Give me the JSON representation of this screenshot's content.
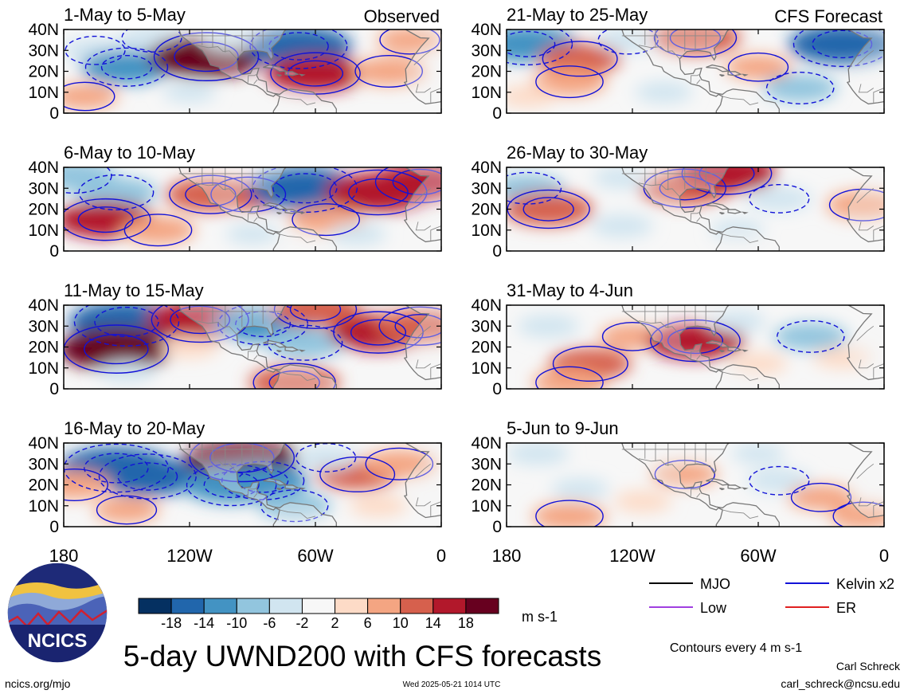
{
  "chart_data": {
    "type": "heatmap",
    "title": "5-day UWND200 with CFS forecasts",
    "units": "m s-1",
    "contour_note": "Contours every 4 m s-1",
    "x_ticks": [
      "180",
      "120W",
      "60W",
      "0"
    ],
    "y_ticks": [
      "40N",
      "30N",
      "20N",
      "10N",
      "0"
    ],
    "xlim": [
      -180,
      0
    ],
    "ylim": [
      0,
      40
    ],
    "colorbar": {
      "tick_labels": [
        "-18",
        "-14",
        "-10",
        "-6",
        "-2",
        "2",
        "6",
        "10",
        "14",
        "18"
      ],
      "colors": [
        "#053061",
        "#2166ac",
        "#4393c3",
        "#92c5de",
        "#d1e5f0",
        "#f7f7f7",
        "#fddbc7",
        "#f4a582",
        "#d6604d",
        "#b2182b",
        "#67001f"
      ]
    },
    "legend": [
      {
        "label": "MJO",
        "color": "#000000"
      },
      {
        "label": "Kelvin x2",
        "color": "#1212d8"
      },
      {
        "label": "Low",
        "color": "#a040e0"
      },
      {
        "label": "ER",
        "color": "#e02020"
      }
    ],
    "panel_tags": {
      "observed": "Observed",
      "forecast": "CFS Forecast"
    },
    "panels": [
      {
        "label": "1-May to 5-May",
        "tag": "observed",
        "col": 0,
        "row": 0,
        "anomalies": [
          {
            "lon": -165,
            "lat": 30,
            "value": -6
          },
          {
            "lon": -150,
            "lat": 22,
            "value": -12
          },
          {
            "lon": -138,
            "lat": 36,
            "value": -6
          },
          {
            "lon": -112,
            "lat": 27,
            "value": 18
          },
          {
            "lon": -100,
            "lat": 36,
            "value": -4
          },
          {
            "lon": -68,
            "lat": 32,
            "value": -16
          },
          {
            "lon": -60,
            "lat": 19,
            "value": 14
          },
          {
            "lon": -25,
            "lat": 20,
            "value": 8
          },
          {
            "lon": -170,
            "lat": 8,
            "value": 6
          },
          {
            "lon": -120,
            "lat": 10,
            "value": -3
          },
          {
            "lon": -15,
            "lat": 35,
            "value": 6
          }
        ]
      },
      {
        "label": "21-May to 25-May",
        "tag": "forecast",
        "col": 1,
        "row": 0,
        "anomalies": [
          {
            "lon": -170,
            "lat": 33,
            "value": -14
          },
          {
            "lon": -145,
            "lat": 26,
            "value": 10
          },
          {
            "lon": -150,
            "lat": 15,
            "value": 8
          },
          {
            "lon": -122,
            "lat": 35,
            "value": -6
          },
          {
            "lon": -90,
            "lat": 36,
            "value": 12
          },
          {
            "lon": -60,
            "lat": 22,
            "value": 6
          },
          {
            "lon": -40,
            "lat": 12,
            "value": -8
          },
          {
            "lon": -20,
            "lat": 33,
            "value": -16
          },
          {
            "lon": -105,
            "lat": 10,
            "value": -4
          },
          {
            "lon": -170,
            "lat": 8,
            "value": 4
          }
        ]
      },
      {
        "label": "6-May to 10-May",
        "tag": "observed",
        "col": 0,
        "row": 1,
        "anomalies": [
          {
            "lon": -175,
            "lat": 36,
            "value": -10
          },
          {
            "lon": -155,
            "lat": 28,
            "value": -10
          },
          {
            "lon": -160,
            "lat": 15,
            "value": 14
          },
          {
            "lon": -135,
            "lat": 10,
            "value": 8
          },
          {
            "lon": -110,
            "lat": 27,
            "value": 12
          },
          {
            "lon": -92,
            "lat": 27,
            "value": 10
          },
          {
            "lon": -65,
            "lat": 30,
            "value": -18
          },
          {
            "lon": -30,
            "lat": 28,
            "value": 16
          },
          {
            "lon": -10,
            "lat": 33,
            "value": 14
          },
          {
            "lon": -55,
            "lat": 15,
            "value": 8
          },
          {
            "lon": -40,
            "lat": 8,
            "value": -4
          },
          {
            "lon": -90,
            "lat": 8,
            "value": -3
          }
        ]
      },
      {
        "label": "26-May to 30-May",
        "tag": "forecast",
        "col": 1,
        "row": 1,
        "anomalies": [
          {
            "lon": -170,
            "lat": 30,
            "value": -8
          },
          {
            "lon": -160,
            "lat": 20,
            "value": 12
          },
          {
            "lon": -95,
            "lat": 30,
            "value": 12
          },
          {
            "lon": -75,
            "lat": 37,
            "value": 14
          },
          {
            "lon": -125,
            "lat": 35,
            "value": -4
          },
          {
            "lon": -50,
            "lat": 25,
            "value": -6
          },
          {
            "lon": -10,
            "lat": 22,
            "value": 8
          },
          {
            "lon": -125,
            "lat": 12,
            "value": -5
          },
          {
            "lon": -70,
            "lat": 10,
            "value": -3
          }
        ]
      },
      {
        "label": "11-May to 15-May",
        "tag": "observed",
        "col": 0,
        "row": 2,
        "anomalies": [
          {
            "lon": -150,
            "lat": 32,
            "value": -18
          },
          {
            "lon": -155,
            "lat": 19,
            "value": 18
          },
          {
            "lon": -115,
            "lat": 33,
            "value": 16
          },
          {
            "lon": -85,
            "lat": 31,
            "value": -14
          },
          {
            "lon": -65,
            "lat": 22,
            "value": -10
          },
          {
            "lon": -30,
            "lat": 27,
            "value": 14
          },
          {
            "lon": -10,
            "lat": 30,
            "value": 12
          },
          {
            "lon": -60,
            "lat": 38,
            "value": 12
          },
          {
            "lon": -70,
            "lat": 3,
            "value": 12
          },
          {
            "lon": -150,
            "lat": 8,
            "value": -4
          },
          {
            "lon": -120,
            "lat": 20,
            "value": 4
          }
        ]
      },
      {
        "label": "31-May to 4-Jun",
        "tag": "forecast",
        "col": 1,
        "row": 2,
        "anomalies": [
          {
            "lon": -160,
            "lat": 30,
            "value": -5
          },
          {
            "lon": -140,
            "lat": 12,
            "value": 10
          },
          {
            "lon": -120,
            "lat": 25,
            "value": 6
          },
          {
            "lon": -90,
            "lat": 23,
            "value": 14
          },
          {
            "lon": -70,
            "lat": 32,
            "value": -4
          },
          {
            "lon": -35,
            "lat": 25,
            "value": -8
          },
          {
            "lon": -20,
            "lat": 15,
            "value": 4
          },
          {
            "lon": -150,
            "lat": 3,
            "value": 8
          },
          {
            "lon": -60,
            "lat": 12,
            "value": 4
          }
        ]
      },
      {
        "label": "16-May to 20-May",
        "tag": "observed",
        "col": 0,
        "row": 3,
        "anomalies": [
          {
            "lon": -155,
            "lat": 28,
            "value": -18
          },
          {
            "lon": -140,
            "lat": 24,
            "value": -16
          },
          {
            "lon": -95,
            "lat": 33,
            "value": 18
          },
          {
            "lon": -175,
            "lat": 20,
            "value": 8
          },
          {
            "lon": -100,
            "lat": 20,
            "value": -14
          },
          {
            "lon": -85,
            "lat": 22,
            "value": -12
          },
          {
            "lon": -70,
            "lat": 10,
            "value": -8
          },
          {
            "lon": -40,
            "lat": 25,
            "value": 10
          },
          {
            "lon": -20,
            "lat": 30,
            "value": 8
          },
          {
            "lon": -150,
            "lat": 8,
            "value": 6
          },
          {
            "lon": -55,
            "lat": 33,
            "value": -6
          },
          {
            "lon": -30,
            "lat": 10,
            "value": 4
          }
        ]
      },
      {
        "label": "5-Jun to 9-Jun",
        "tag": "forecast",
        "col": 1,
        "row": 3,
        "anomalies": [
          {
            "lon": -165,
            "lat": 35,
            "value": -5
          },
          {
            "lon": -145,
            "lat": 18,
            "value": -4
          },
          {
            "lon": -150,
            "lat": 5,
            "value": 8
          },
          {
            "lon": -115,
            "lat": 12,
            "value": 4
          },
          {
            "lon": -95,
            "lat": 25,
            "value": 6
          },
          {
            "lon": -50,
            "lat": 22,
            "value": -6
          },
          {
            "lon": -30,
            "lat": 14,
            "value": 6
          },
          {
            "lon": -10,
            "lat": 5,
            "value": 6
          },
          {
            "lon": -60,
            "lat": 35,
            "value": -3
          }
        ]
      }
    ]
  },
  "branding": {
    "logo_text": "NCICS",
    "site": "ncics.org/mjo",
    "timestamp": "Wed 2025-05-21 1014 UTC",
    "author": "Carl Schreck",
    "email": "carl_schreck@ncsu.edu"
  }
}
